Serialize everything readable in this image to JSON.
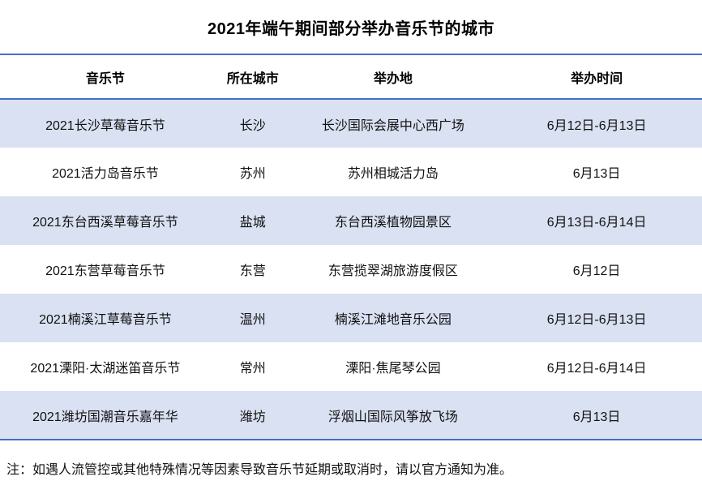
{
  "title": "2021年端午期间部分举办音乐节的城市",
  "colors": {
    "accent_border": "#4472C4",
    "row_stripe": "#D9E1F2",
    "background": "#FFFFFF",
    "text": "#111111"
  },
  "chart_data": {
    "type": "table",
    "title": "2021年端午期间部分举办音乐节的城市",
    "headers": [
      "音乐节",
      "所在城市",
      "举办地",
      "举办时间"
    ],
    "rows": [
      {
        "festival": "2021长沙草莓音乐节",
        "city": "长沙",
        "venue": "长沙国际会展中心西广场",
        "time": "6月12日-6月13日"
      },
      {
        "festival": "2021活力岛音乐节",
        "city": "苏州",
        "venue": "苏州相城活力岛",
        "time": "6月13日"
      },
      {
        "festival": "2021东台西溪草莓音乐节",
        "city": "盐城",
        "venue": "东台西溪植物园景区",
        "time": "6月13日-6月14日"
      },
      {
        "festival": "2021东营草莓音乐节",
        "city": "东营",
        "venue": "东营揽翠湖旅游度假区",
        "time": "6月12日"
      },
      {
        "festival": "2021楠溪江草莓音乐节",
        "city": "温州",
        "venue": "楠溪江滩地音乐公园",
        "time": "6月12日-6月13日"
      },
      {
        "festival": "2021溧阳·太湖迷笛音乐节",
        "city": "常州",
        "venue": "溧阳·焦尾琴公园",
        "time": "6月12日-6月14日"
      },
      {
        "festival": "2021潍坊国潮音乐嘉年华",
        "city": "潍坊",
        "venue": "浮烟山国际风筝放飞场",
        "time": "6月13日"
      }
    ]
  },
  "footnote": "注：如遇人流管控或其他特殊情况等因素导致音乐节延期或取消时，请以官方通知为准。"
}
